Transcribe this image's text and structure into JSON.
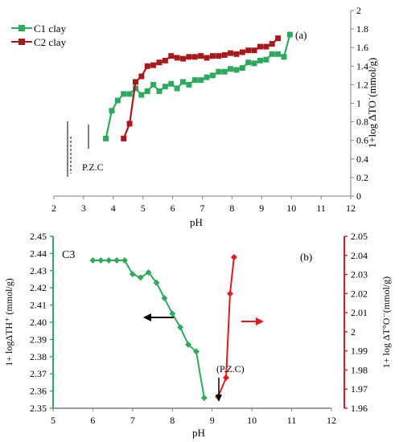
{
  "chart_data": [
    {
      "type": "line",
      "annotation": "(a)",
      "xlabel": "pH",
      "ylabel": "1+log  ΔTO˙(mmol/g)",
      "xlim": [
        2,
        12
      ],
      "ylim": [
        0,
        2
      ],
      "x_ticks": [
        "2",
        "3",
        "4",
        "5",
        "6",
        "7",
        "8",
        "9",
        "10",
        "11",
        "12"
      ],
      "y_ticks": [
        "0",
        "0.2",
        "0.4",
        "0.6",
        "0.8",
        "1",
        "1.2",
        "1.4",
        "1.6",
        "1.8",
        "2"
      ],
      "pzc_label": "P.Z.C",
      "legend_position": "top-left",
      "grid": false,
      "series": [
        {
          "name": "C1 clay",
          "color": "#2eaa5c",
          "marker": "square",
          "x": [
            3.75,
            3.95,
            4.15,
            4.35,
            4.55,
            4.75,
            4.95,
            5.15,
            5.35,
            5.55,
            5.75,
            5.95,
            6.15,
            6.35,
            6.55,
            6.75,
            6.95,
            7.15,
            7.35,
            7.55,
            7.75,
            7.95,
            8.15,
            8.35,
            8.55,
            8.75,
            8.95,
            9.15,
            9.35,
            9.55,
            9.75,
            9.95
          ],
          "y": [
            0.62,
            0.92,
            1.03,
            1.1,
            1.1,
            1.16,
            1.09,
            1.13,
            1.2,
            1.13,
            1.18,
            1.21,
            1.16,
            1.23,
            1.2,
            1.25,
            1.25,
            1.28,
            1.3,
            1.34,
            1.34,
            1.37,
            1.36,
            1.38,
            1.44,
            1.43,
            1.46,
            1.47,
            1.53,
            1.53,
            1.5,
            1.74
          ]
        },
        {
          "name": "C2 clay",
          "color": "#a8191c",
          "marker": "square",
          "x": [
            4.35,
            4.55,
            4.75,
            4.95,
            5.15,
            5.35,
            5.55,
            5.75,
            5.95,
            6.15,
            6.35,
            6.55,
            6.75,
            6.95,
            7.15,
            7.35,
            7.55,
            7.75,
            7.95,
            8.15,
            8.35,
            8.55,
            8.75,
            8.95,
            9.15,
            9.35,
            9.55
          ],
          "y": [
            0.62,
            0.78,
            1.23,
            1.29,
            1.4,
            1.41,
            1.44,
            1.46,
            1.51,
            1.49,
            1.48,
            1.5,
            1.5,
            1.51,
            1.49,
            1.51,
            1.51,
            1.52,
            1.54,
            1.53,
            1.55,
            1.57,
            1.57,
            1.61,
            1.61,
            1.64,
            1.7
          ]
        }
      ]
    },
    {
      "type": "line",
      "annotation": "(b)",
      "panel_label": "C3",
      "xlabel": "pH",
      "ylabel_left": "1+ logΔTH⁺ (mmol/g)",
      "ylabel_right": "1+ log ΔT°O⁻(mmol/g)",
      "xlim": [
        5,
        12
      ],
      "ylim_left": [
        2.35,
        2.45
      ],
      "ylim_right": [
        1.96,
        2.05
      ],
      "x_ticks": [
        "5",
        "6",
        "7",
        "8",
        "9",
        "10",
        "11",
        "12"
      ],
      "y_ticks_left": [
        "2.35",
        "2.36",
        "2.37",
        "2.38",
        "2.39",
        "2.40",
        "2.41",
        "2.42",
        "2.43",
        "2.44",
        "2.45"
      ],
      "y_ticks_right": [
        "1.96",
        "1.97",
        "1.98",
        "1.99",
        "2",
        "2.01",
        "2.02",
        "2.03",
        "2.04",
        "2.05"
      ],
      "pzc_label": "(P.Z.C)",
      "grid": false,
      "left_axis_color": "#2eaa5c",
      "right_axis_color": "#e01b1b",
      "series": [
        {
          "axis": "left",
          "color": "#2eaa5c",
          "marker": "diamond",
          "x": [
            6.0,
            6.2,
            6.4,
            6.6,
            6.8,
            7.0,
            7.2,
            7.4,
            7.6,
            7.8,
            8.0,
            8.2,
            8.4,
            8.6,
            8.8
          ],
          "y": [
            2.436,
            2.436,
            2.436,
            2.436,
            2.436,
            2.428,
            2.426,
            2.429,
            2.423,
            2.414,
            2.405,
            2.397,
            2.387,
            2.383,
            2.356
          ]
        },
        {
          "axis": "right",
          "color": "#e01b1b",
          "marker": "diamond",
          "x": [
            9.15,
            9.35,
            9.45,
            9.55
          ],
          "y": [
            1.966,
            1.976,
            2.02,
            2.039
          ]
        }
      ]
    }
  ]
}
